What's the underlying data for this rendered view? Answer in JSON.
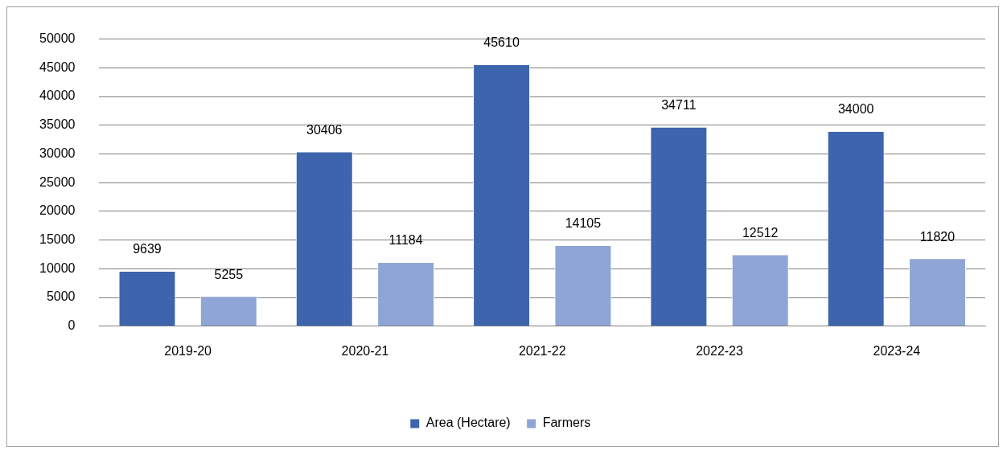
{
  "chart_data": {
    "type": "bar",
    "categories": [
      "2019-20",
      "2020-21",
      "2021-22",
      "2022-23",
      "2023-24"
    ],
    "series": [
      {
        "name": "Area (Hectare)",
        "color": "#3d64ad",
        "values": [
          9639,
          30406,
          45610,
          34711,
          34000
        ]
      },
      {
        "name": "Farmers",
        "color": "#8fa5d6",
        "values": [
          5255,
          11184,
          14105,
          12512,
          11820
        ]
      }
    ],
    "ylim": [
      0,
      50000
    ],
    "yticks": [
      0,
      5000,
      10000,
      15000,
      20000,
      25000,
      30000,
      35000,
      40000,
      45000,
      50000
    ],
    "grid": "y",
    "legend": "bottom",
    "data_labels": true
  }
}
